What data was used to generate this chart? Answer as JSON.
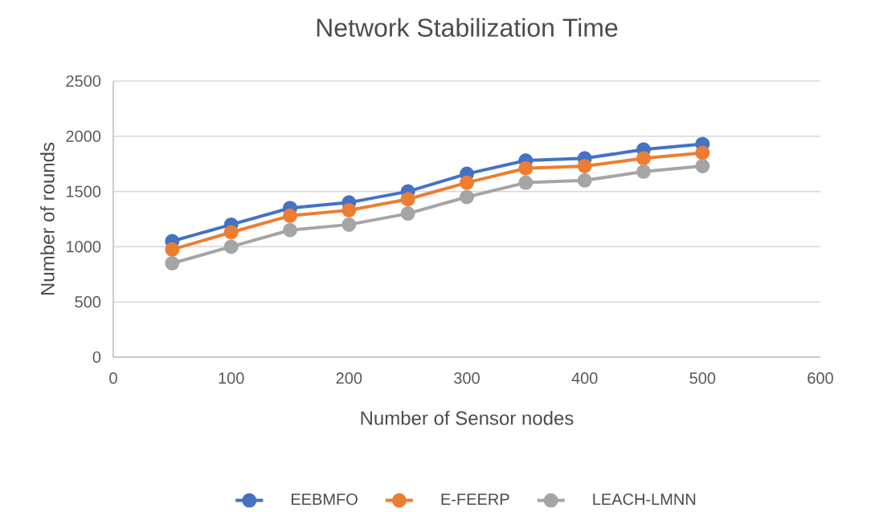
{
  "chart_data": {
    "type": "line",
    "title": "Network Stabilization Time",
    "xlabel": "Number of Sensor nodes",
    "ylabel": "Number of rounds",
    "x": [
      50,
      100,
      150,
      200,
      250,
      300,
      350,
      400,
      450,
      500
    ],
    "series": [
      {
        "name": "EEBMFO",
        "color": "#4472c4",
        "values": [
          1050,
          1200,
          1350,
          1400,
          1500,
          1660,
          1780,
          1800,
          1880,
          1930
        ]
      },
      {
        "name": "E-FEERP",
        "color": "#ed7d31",
        "values": [
          975,
          1130,
          1280,
          1330,
          1430,
          1580,
          1710,
          1730,
          1800,
          1850
        ]
      },
      {
        "name": "LEACH-LMNN",
        "color": "#a5a5a5",
        "values": [
          850,
          1000,
          1150,
          1200,
          1300,
          1450,
          1580,
          1600,
          1680,
          1730
        ]
      }
    ],
    "xlim": [
      0,
      600
    ],
    "xticks": [
      0,
      100,
      200,
      300,
      400,
      500,
      600
    ],
    "ylim": [
      0,
      2500
    ],
    "yticks": [
      0,
      500,
      1000,
      1500,
      2000,
      2500
    ],
    "grid": "y",
    "legend": "bottom",
    "marker": "circle",
    "line_style": "solid"
  }
}
